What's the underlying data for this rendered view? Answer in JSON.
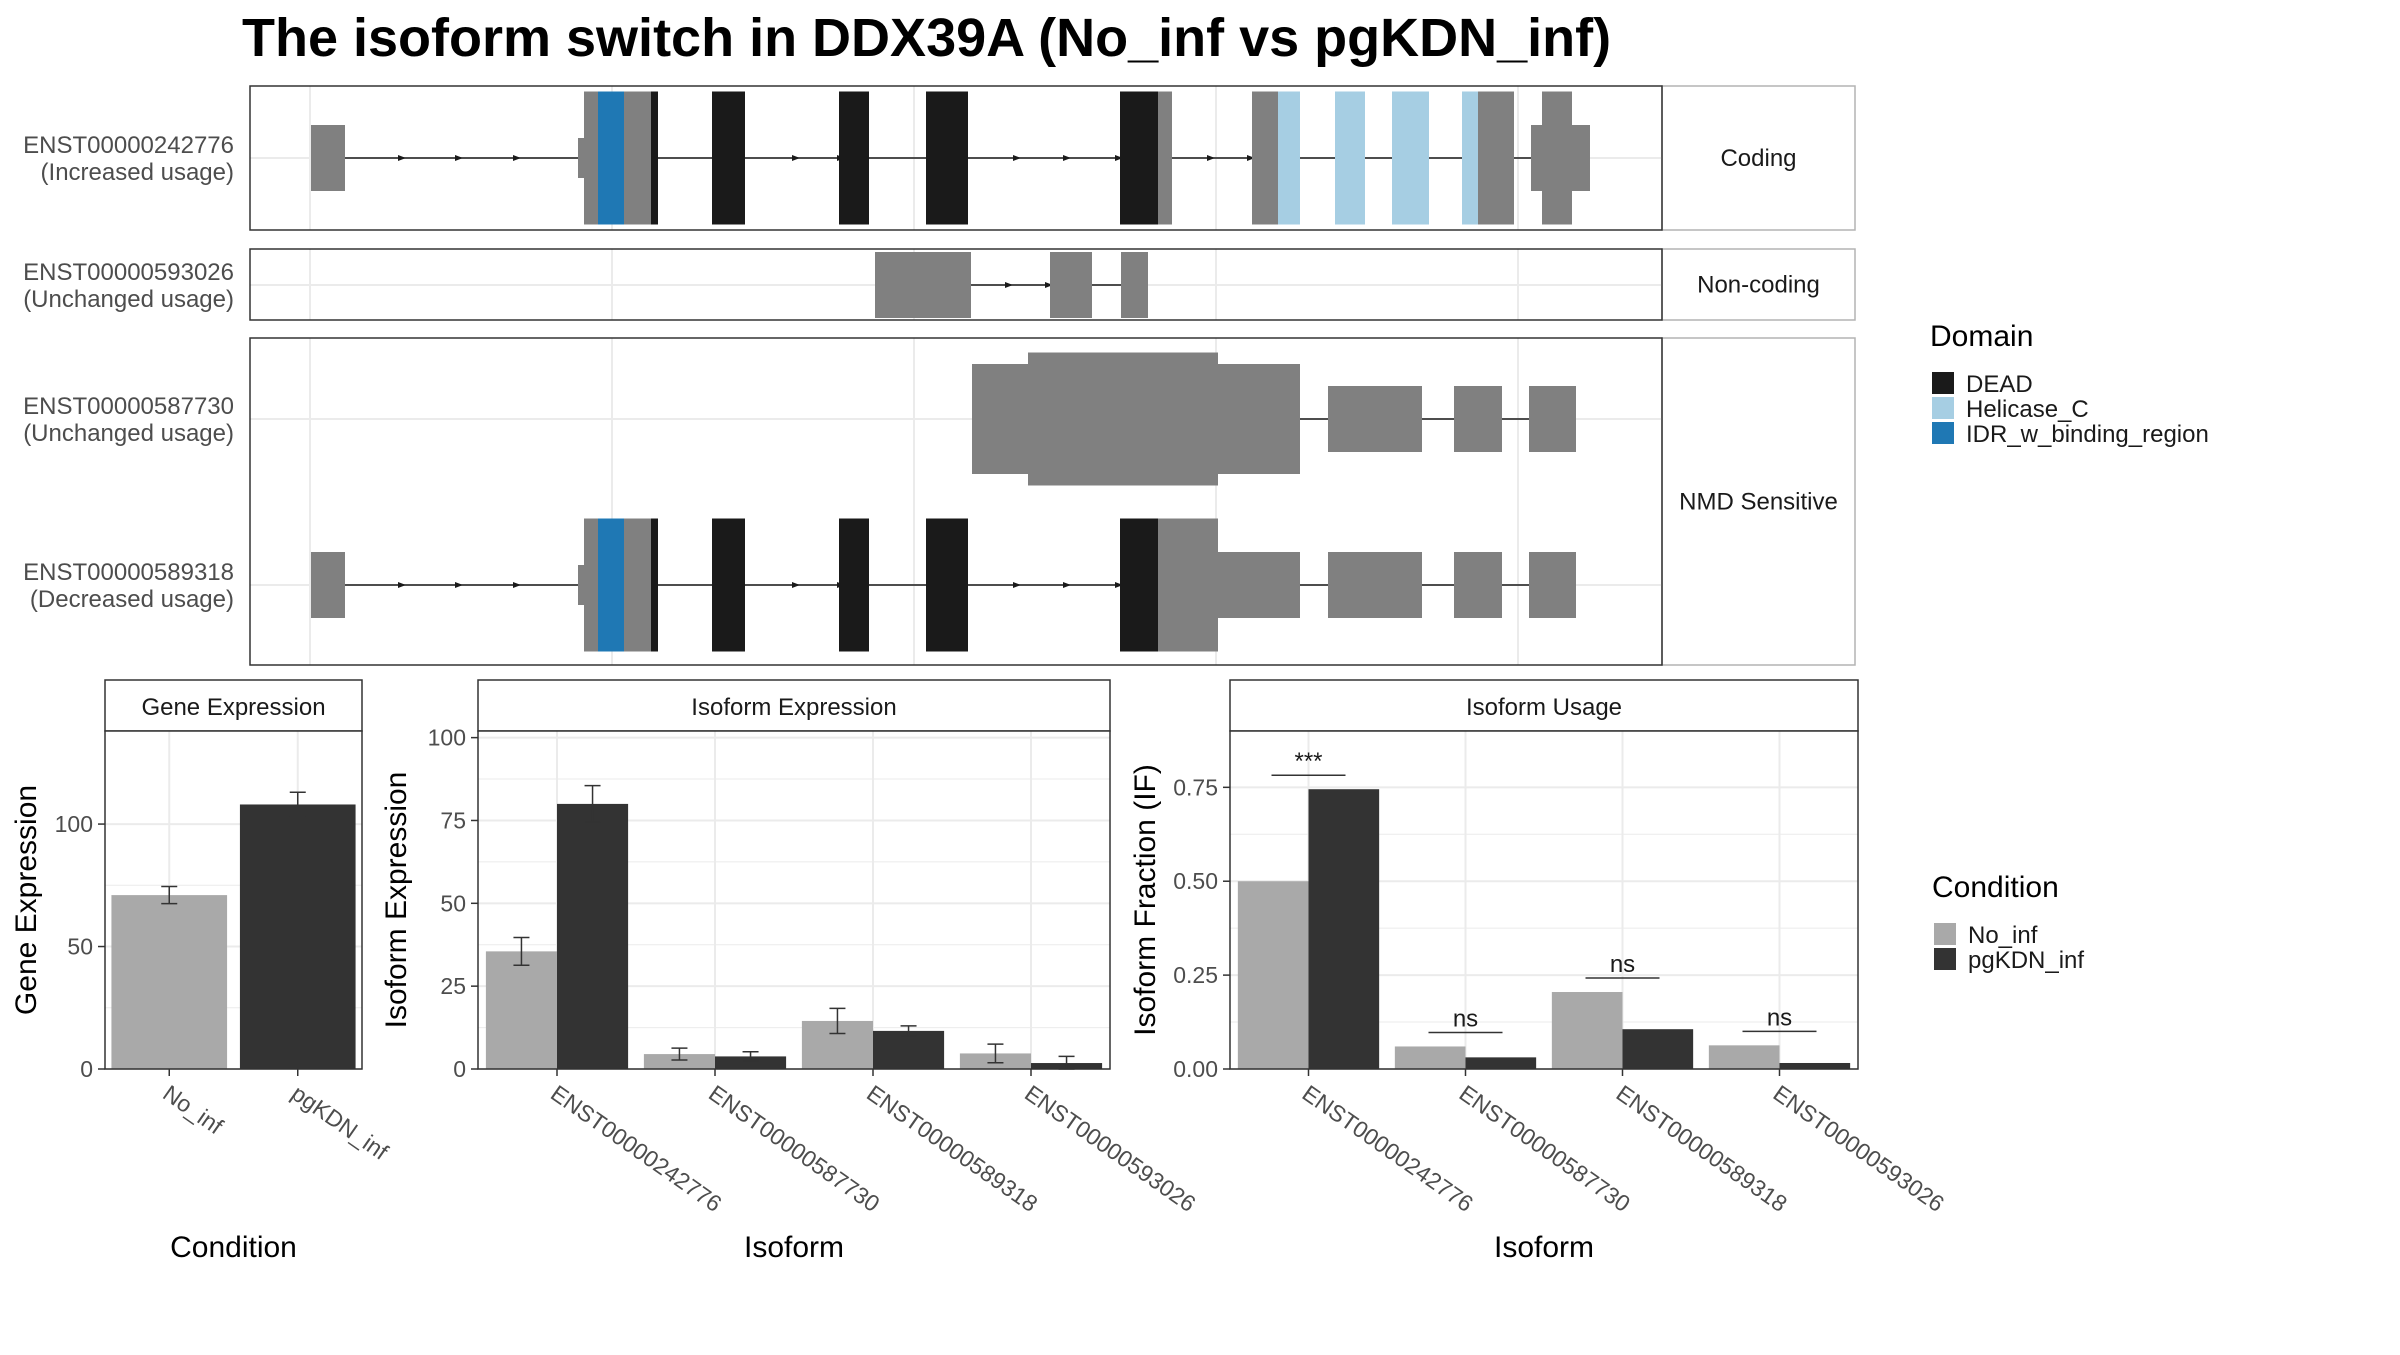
{
  "title": "The isoform switch in DDX39A (No_inf vs pgKDN_inf)",
  "colors": {
    "no_inf": "#A9A9A9",
    "pgkdn_inf": "#333333",
    "utr": "#808080",
    "dead": "#1A1A1A",
    "helicase_c": "#A6CEE3",
    "idr": "#1F78B4",
    "grid": "#EBEBEB",
    "panel_border": "#333333",
    "strip_border": "#B3B3B3"
  },
  "structure": {
    "facets": [
      "Coding",
      "Non-coding",
      "NMD Sensitive"
    ],
    "rows": [
      {
        "id": "ENST00000242776",
        "usage": "(Increased usage)",
        "facet": 0
      },
      {
        "id": "ENST00000593026",
        "usage": "(Unchanged usage)",
        "facet": 1
      },
      {
        "id": "ENST00000587730",
        "usage": "(Unchanged usage)",
        "facet": 2
      },
      {
        "id": "ENST00000589318",
        "usage": "(Decreased usage)",
        "facet": 2
      }
    ]
  },
  "legends": {
    "domain": {
      "title": "Domain",
      "items": [
        {
          "label": "DEAD",
          "color": "#1A1A1A"
        },
        {
          "label": "Helicase_C",
          "color": "#A6CEE3"
        },
        {
          "label": "IDR_w_binding_region",
          "color": "#1F78B4"
        }
      ]
    },
    "condition": {
      "title": "Condition",
      "items": [
        {
          "label": "No_inf",
          "color": "#A9A9A9"
        },
        {
          "label": "pgKDN_inf",
          "color": "#333333"
        }
      ]
    }
  },
  "chart_data": [
    {
      "type": "bar",
      "title": "Gene Expression",
      "xlabel": "Condition",
      "ylabel": "Gene Expression",
      "categories": [
        "No_inf",
        "pgKDN_inf"
      ],
      "values": [
        71,
        108
      ],
      "errors": [
        3.5,
        5
      ],
      "ylim": [
        0,
        138
      ],
      "yticks": [
        0,
        50,
        100
      ],
      "grid": true
    },
    {
      "type": "bar",
      "title": "Isoform Expression",
      "xlabel": "Isoform",
      "ylabel": "Isoform Expression",
      "categories": [
        "ENST00000242776",
        "ENST00000587730",
        "ENST00000589318",
        "ENST00000593026"
      ],
      "series": [
        {
          "name": "No_inf",
          "values": [
            35.5,
            4.5,
            14.5,
            4.7
          ],
          "errors": [
            4.2,
            1.8,
            3.8,
            2.8
          ]
        },
        {
          "name": "pgKDN_inf",
          "values": [
            80,
            3.8,
            11.5,
            1.8
          ],
          "errors": [
            5.5,
            1.4,
            1.5,
            2.0
          ]
        }
      ],
      "ylim": [
        0,
        102
      ],
      "yticks": [
        0,
        25,
        50,
        75,
        100
      ],
      "grid": true
    },
    {
      "type": "bar",
      "title": "Isoform Usage",
      "xlabel": "Isoform",
      "ylabel": "Isoform Fraction (IF)",
      "categories": [
        "ENST00000242776",
        "ENST00000587730",
        "ENST00000589318",
        "ENST00000593026"
      ],
      "series": [
        {
          "name": "No_inf",
          "values": [
            0.5,
            0.06,
            0.205,
            0.063
          ]
        },
        {
          "name": "pgKDN_inf",
          "values": [
            0.745,
            0.031,
            0.106,
            0.016
          ]
        }
      ],
      "significance": [
        "***",
        "ns",
        "ns",
        "ns"
      ],
      "ylim": [
        0,
        0.9
      ],
      "yticks": [
        0.0,
        0.25,
        0.5,
        0.75
      ],
      "ytick_labels": [
        "0.00",
        "0.25",
        "0.50",
        "0.75"
      ],
      "grid": true
    }
  ]
}
